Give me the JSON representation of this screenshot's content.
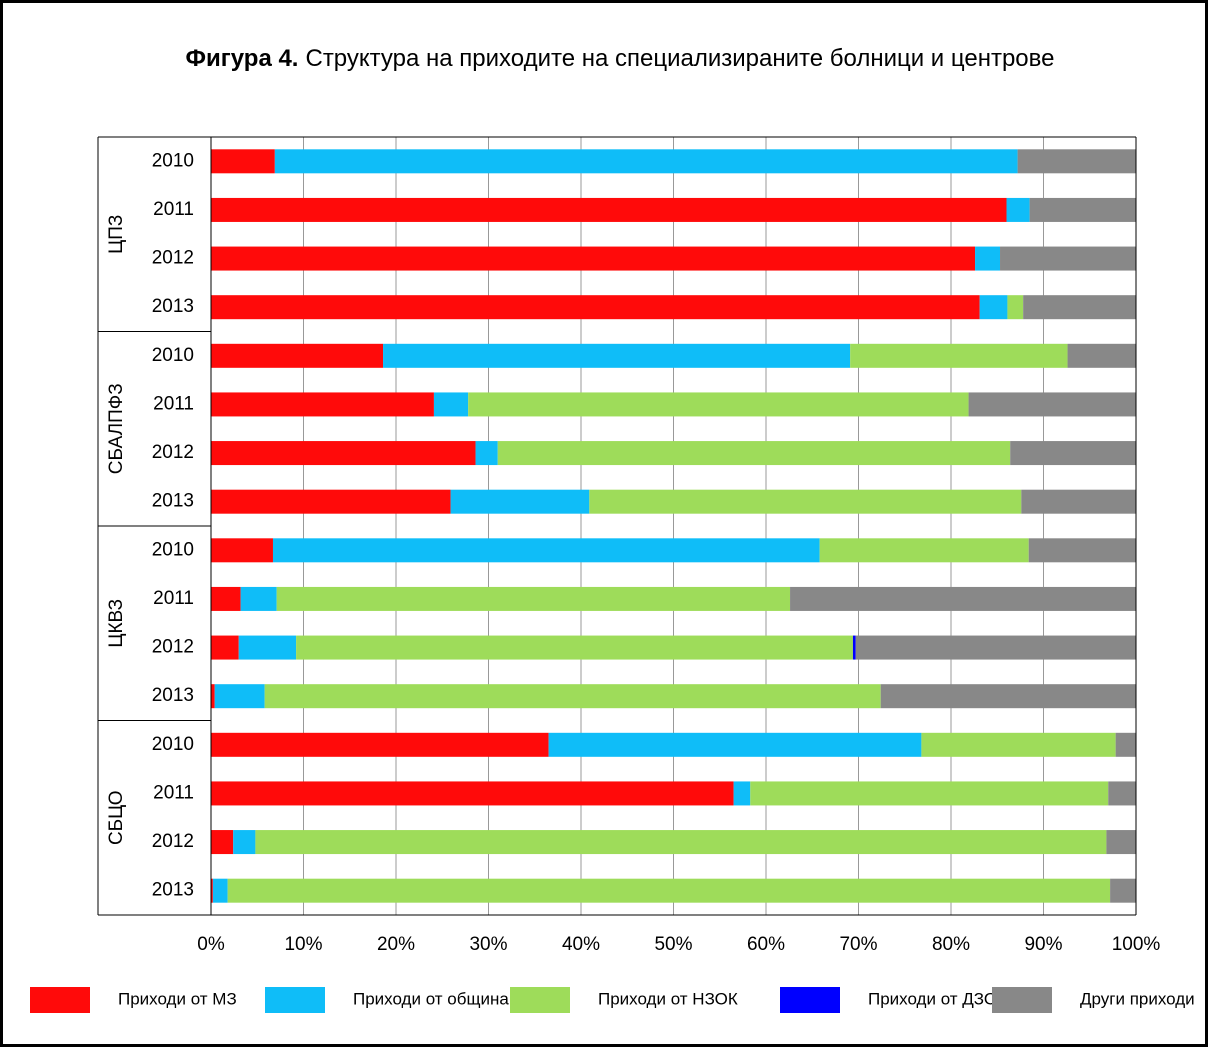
{
  "chart_data": {
    "type": "stacked_barh",
    "figure_label": "Фигура 4.",
    "title": "Структура на приходите на специализираните болници и центрове",
    "groups": [
      "ЦПЗ",
      "СБАЛПФЗ",
      "ЦКВЗ",
      "СБЦО"
    ],
    "categories": [
      "2010",
      "2011",
      "2012",
      "2013",
      "2010",
      "2011",
      "2012",
      "2013",
      "2010",
      "2011",
      "2012",
      "2013",
      "2010",
      "2011",
      "2012",
      "2013"
    ],
    "series": [
      {
        "name": "Приходи от МЗ",
        "color": "#ff0a0a",
        "values": [
          6.9,
          86.0,
          82.6,
          83.1,
          18.6,
          24.1,
          28.6,
          25.9,
          6.7,
          3.2,
          3.0,
          0.4,
          36.5,
          56.5,
          2.4,
          0.2
        ]
      },
      {
        "name": "Приходи от община",
        "color": "#0fbdf8",
        "values": [
          80.3,
          2.5,
          2.7,
          3.0,
          50.5,
          3.7,
          2.4,
          15.0,
          59.1,
          3.9,
          6.2,
          5.4,
          40.3,
          1.8,
          2.4,
          1.6
        ]
      },
      {
        "name": "Приходи от НЗОК",
        "color": "#9edc5a",
        "values": [
          0,
          0,
          0,
          1.7,
          23.5,
          54.1,
          55.4,
          46.7,
          22.6,
          55.5,
          60.2,
          66.6,
          21.0,
          38.7,
          92.0,
          95.4
        ]
      },
      {
        "name": "Приходи от ДЗОФ",
        "color": "#0000ff",
        "values": [
          0,
          0,
          0,
          0,
          0,
          0,
          0,
          0,
          0,
          0,
          0.3,
          0,
          0,
          0,
          0,
          0
        ]
      },
      {
        "name": "Други приходи",
        "color": "#888888",
        "values": [
          12.8,
          11.5,
          14.7,
          12.2,
          7.4,
          18.1,
          13.6,
          12.4,
          11.6,
          37.4,
          30.3,
          27.6,
          2.2,
          3.0,
          3.2,
          2.8
        ]
      }
    ],
    "xlim": [
      0,
      100
    ],
    "xticks": [
      {
        "value": 0,
        "label": "0%"
      },
      {
        "value": 10,
        "label": "10%"
      },
      {
        "value": 20,
        "label": "20%"
      },
      {
        "value": 30,
        "label": "30%"
      },
      {
        "value": 40,
        "label": "40%"
      },
      {
        "value": 50,
        "label": "50%"
      },
      {
        "value": 60,
        "label": "60%"
      },
      {
        "value": 70,
        "label": "70%"
      },
      {
        "value": 80,
        "label": "80%"
      },
      {
        "value": 90,
        "label": "90%"
      },
      {
        "value": 100,
        "label": "100%"
      }
    ],
    "grid": true,
    "legend": "bottom"
  }
}
